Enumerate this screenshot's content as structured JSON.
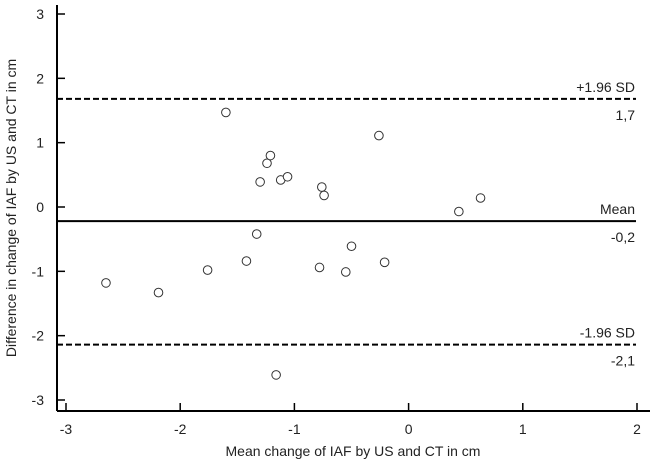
{
  "chart_data": {
    "type": "scatter",
    "title": "",
    "xlabel": "Mean change of IAF by US and CT in cm",
    "ylabel": "Difference in change of IAF by US and CT in cm",
    "xlim": [
      -3.1,
      2.1
    ],
    "ylim": [
      -3.1,
      3.1
    ],
    "xticks": [
      -3,
      -2,
      -1,
      0,
      1,
      2
    ],
    "yticks": [
      -3,
      -2,
      -1,
      0,
      1,
      2,
      3
    ],
    "xtick_labels": [
      "-3",
      "-2",
      "-1",
      "0",
      "1",
      "2"
    ],
    "ytick_labels": [
      "-3",
      "-2",
      "-1",
      "0",
      "1",
      "2",
      "3"
    ],
    "grid": false,
    "reference_lines": [
      {
        "name": "upper-loa",
        "label_top": "+1.96 SD",
        "label_bottom": "1,7",
        "y": 1.68,
        "style": "dashed"
      },
      {
        "name": "mean",
        "label_top": "Mean",
        "label_bottom": "-0,2",
        "y": -0.22,
        "style": "solid"
      },
      {
        "name": "lower-loa",
        "label_top": "-1.96 SD",
        "label_bottom": "-2,1",
        "y": -2.14,
        "style": "dashed"
      }
    ],
    "points": [
      {
        "x": -2.65,
        "y": -1.18
      },
      {
        "x": -2.19,
        "y": -1.33
      },
      {
        "x": -1.76,
        "y": -0.98
      },
      {
        "x": -1.6,
        "y": 1.47
      },
      {
        "x": -1.42,
        "y": -0.84
      },
      {
        "x": -1.33,
        "y": -0.42
      },
      {
        "x": -1.3,
        "y": 0.39
      },
      {
        "x": -1.24,
        "y": 0.68
      },
      {
        "x": -1.21,
        "y": 0.8
      },
      {
        "x": -1.16,
        "y": -2.61
      },
      {
        "x": -1.12,
        "y": 0.42
      },
      {
        "x": -1.06,
        "y": 0.47
      },
      {
        "x": -0.78,
        "y": -0.94
      },
      {
        "x": -0.76,
        "y": 0.31
      },
      {
        "x": -0.74,
        "y": 0.18
      },
      {
        "x": -0.55,
        "y": -1.01
      },
      {
        "x": -0.5,
        "y": -0.61
      },
      {
        "x": -0.26,
        "y": 1.11
      },
      {
        "x": -0.21,
        "y": -0.86
      },
      {
        "x": 0.44,
        "y": -0.07
      },
      {
        "x": 0.63,
        "y": 0.14
      }
    ]
  }
}
